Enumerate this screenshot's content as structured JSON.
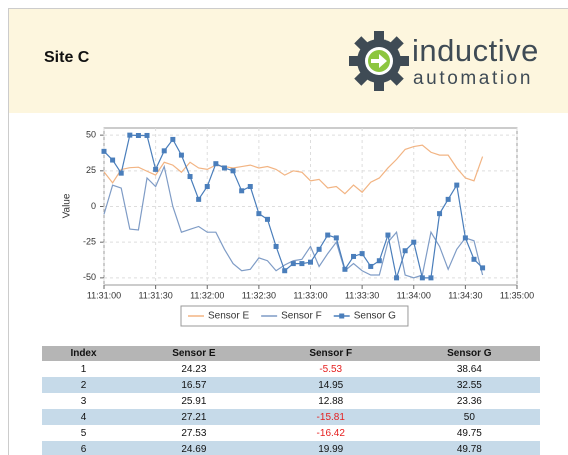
{
  "header": {
    "title": "Site C",
    "logo": {
      "line1": "inductive",
      "line2": "automation"
    }
  },
  "chart_data": {
    "type": "line",
    "ylabel": "Value",
    "x": [
      "11:31:00",
      "11:31:05",
      "11:31:10",
      "11:31:15",
      "11:31:20",
      "11:31:25",
      "11:31:30",
      "11:31:35",
      "11:31:40",
      "11:31:45",
      "11:31:50",
      "11:31:55",
      "11:32:00",
      "11:32:05",
      "11:32:10",
      "11:32:15",
      "11:32:20",
      "11:32:25",
      "11:32:30",
      "11:32:35",
      "11:32:40",
      "11:32:45",
      "11:32:50",
      "11:32:55",
      "11:33:00",
      "11:33:05",
      "11:33:10",
      "11:33:15",
      "11:33:20",
      "11:33:25",
      "11:33:30",
      "11:33:35",
      "11:33:40",
      "11:33:45",
      "11:33:50",
      "11:33:55",
      "11:34:00",
      "11:34:05",
      "11:34:10",
      "11:34:15",
      "11:34:20",
      "11:34:25",
      "11:34:30",
      "11:34:35",
      "11:34:40"
    ],
    "series": [
      {
        "name": "Sensor E",
        "color": "#f2b483",
        "marker": false,
        "values": [
          24.23,
          16.57,
          25.91,
          27.21,
          27.53,
          24.69,
          22,
          31,
          29,
          24,
          31,
          27,
          26,
          29,
          28,
          27,
          28,
          29,
          27,
          28,
          26,
          22,
          25,
          24,
          18,
          19,
          13,
          14,
          9,
          15,
          10,
          17,
          20,
          27,
          33,
          40,
          42,
          43,
          38,
          36,
          36,
          27,
          20,
          18,
          35
        ]
      },
      {
        "name": "Sensor F",
        "color": "#7f9cc6",
        "marker": false,
        "values": [
          -5.53,
          14.95,
          12.88,
          -15.81,
          -16.42,
          19.99,
          14,
          28,
          0,
          -18,
          -16,
          -14,
          -18,
          -18,
          -30,
          -40,
          -45,
          -44,
          -36,
          -38,
          -45,
          -41,
          -38,
          -37,
          -28,
          -42,
          -33,
          -25,
          -45,
          -40,
          -45,
          -48,
          -48,
          -25,
          -18,
          -48,
          -50,
          -48,
          -18,
          -28,
          -44,
          -30,
          -22,
          -24,
          -48
        ]
      },
      {
        "name": "Sensor G",
        "color": "#4a7ebb",
        "marker": true,
        "values": [
          38.64,
          32.55,
          23.36,
          50,
          49.75,
          49.78,
          26,
          39,
          47,
          36,
          21,
          5,
          14,
          30,
          27,
          25,
          11,
          14,
          -5,
          -9,
          -28,
          -45,
          -40,
          -40,
          -39,
          -30,
          -20,
          -22,
          -44,
          -35,
          -33,
          -42,
          -38,
          -20,
          -50,
          -31,
          -25,
          -50,
          -50,
          -5,
          5,
          15,
          -22,
          -37,
          -43
        ]
      }
    ],
    "xlim": [
      "11:31:00",
      "11:35:00"
    ],
    "xticks": [
      "11:31:00",
      "11:31:30",
      "11:32:00",
      "11:32:30",
      "11:33:00",
      "11:33:30",
      "11:34:00",
      "11:34:30",
      "11:35:00"
    ],
    "ylim": [
      -55,
      55
    ],
    "yticks": [
      -50,
      -25,
      0,
      25,
      50
    ],
    "grid": true,
    "legend": "bottom"
  },
  "table": {
    "columns": [
      "Index",
      "Sensor E",
      "Sensor F",
      "Sensor G"
    ],
    "rows": [
      [
        "1",
        "24.23",
        "-5.53",
        "38.64"
      ],
      [
        "2",
        "16.57",
        "14.95",
        "32.55"
      ],
      [
        "3",
        "25.91",
        "12.88",
        "23.36"
      ],
      [
        "4",
        "27.21",
        "-15.81",
        "50"
      ],
      [
        "5",
        "27.53",
        "-16.42",
        "49.75"
      ],
      [
        "6",
        "24.69",
        "19.99",
        "49.78"
      ]
    ]
  }
}
